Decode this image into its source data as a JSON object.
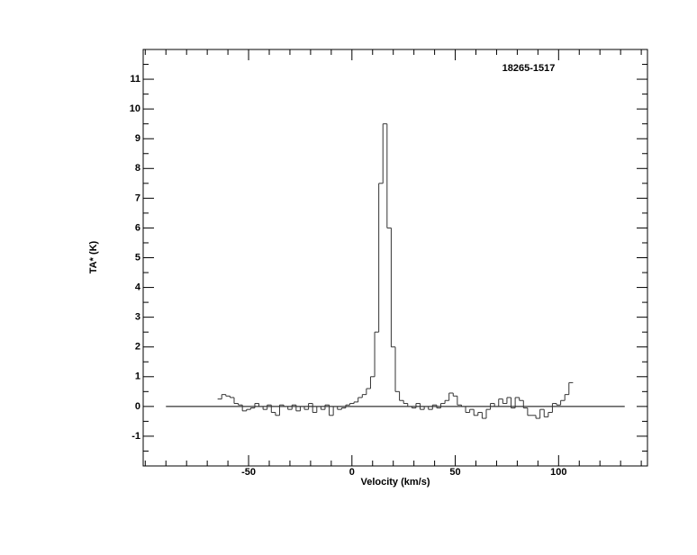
{
  "chart_data": {
    "type": "step",
    "title": "18265-1517",
    "x_label": "Velocity (km/s)",
    "y_label": "TA* (K)",
    "xlim": [
      -101,
      143
    ],
    "ylim": [
      -2,
      12
    ],
    "xticks": [
      -50,
      0,
      50,
      100
    ],
    "xminorticks": [
      -100,
      -90,
      -80,
      -70,
      -60,
      -40,
      -30,
      -20,
      -10,
      10,
      20,
      30,
      40,
      60,
      70,
      80,
      90,
      110,
      120,
      130,
      140
    ],
    "yticks": [
      -1,
      0,
      1,
      2,
      3,
      4,
      5,
      6,
      7,
      8,
      9,
      10,
      11
    ],
    "yminorticks": [
      -1.5,
      -0.5,
      0.5,
      1.5,
      2.5,
      3.5,
      4.5,
      5.5,
      6.5,
      7.5,
      8.5,
      9.5,
      10.5,
      11.5
    ],
    "color": "#333333",
    "x": [
      -64,
      -62,
      -60,
      -58,
      -56,
      -54,
      -52,
      -50,
      -48,
      -46,
      -44,
      -42,
      -40,
      -38,
      -36,
      -34,
      -32,
      -30,
      -28,
      -26,
      -24,
      -22,
      -20,
      -18,
      -16,
      -14,
      -12,
      -10,
      -8,
      -6,
      -4,
      -2,
      0,
      2,
      4,
      6,
      8,
      10,
      12,
      14,
      16,
      18,
      20,
      22,
      24,
      26,
      28,
      30,
      32,
      34,
      36,
      38,
      40,
      42,
      44,
      46,
      48,
      50,
      52,
      54,
      56,
      58,
      60,
      62,
      64,
      66,
      68,
      70,
      72,
      74,
      76,
      78,
      80,
      82,
      84,
      86,
      88,
      90,
      92,
      94,
      96,
      98,
      100,
      102,
      104,
      106
    ],
    "values": [
      0.25,
      0.4,
      0.35,
      0.3,
      0.1,
      0.05,
      -0.15,
      -0.1,
      -0.05,
      0.1,
      0.0,
      -0.1,
      0.05,
      -0.2,
      -0.3,
      0.05,
      0.0,
      -0.1,
      0.05,
      -0.15,
      0.0,
      -0.1,
      0.1,
      -0.2,
      0.0,
      -0.1,
      0.05,
      -0.3,
      0.0,
      -0.1,
      -0.05,
      0.05,
      0.1,
      0.15,
      0.3,
      0.4,
      0.6,
      1.0,
      2.5,
      7.5,
      9.5,
      6.0,
      2.0,
      0.5,
      0.2,
      0.1,
      0.0,
      -0.05,
      0.1,
      -0.1,
      0.0,
      -0.1,
      0.05,
      -0.05,
      0.1,
      0.2,
      0.45,
      0.35,
      0.05,
      0.0,
      -0.2,
      -0.1,
      -0.3,
      -0.2,
      -0.4,
      -0.1,
      0.1,
      0.0,
      0.25,
      0.1,
      0.3,
      -0.05,
      0.3,
      0.2,
      -0.05,
      -0.3,
      -0.3,
      -0.4,
      -0.1,
      -0.35,
      -0.2,
      0.1,
      0.05,
      0.2,
      0.4,
      0.8
    ],
    "baseline": {
      "x": [
        -90,
        132
      ],
      "values": [
        0,
        0
      ]
    }
  }
}
